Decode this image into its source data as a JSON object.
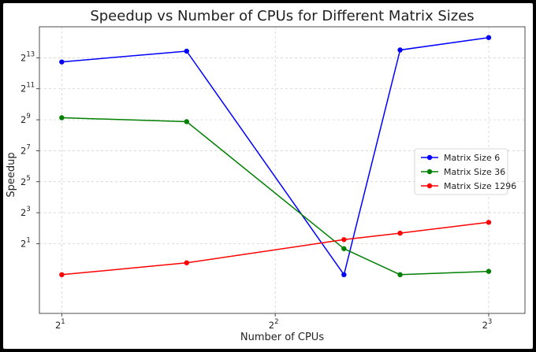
{
  "chart_data": {
    "type": "line",
    "title": "Speedup vs Number of CPUs for Different Matrix Sizes",
    "xlabel": "Number of CPUs",
    "ylabel": "Speedup",
    "x_scale": "log2",
    "y_scale": "log2",
    "x": [
      2,
      3,
      5,
      6,
      8
    ],
    "xlim": [
      1.86,
      9.0
    ],
    "ylim": [
      0.0884,
      32768
    ],
    "x_ticks": [
      {
        "value": 2,
        "base": "2",
        "exp": "1"
      },
      {
        "value": 4,
        "base": "2",
        "exp": "2"
      },
      {
        "value": 8,
        "base": "2",
        "exp": "3"
      }
    ],
    "y_ticks": [
      {
        "value": 2,
        "base": "2",
        "exp": "1"
      },
      {
        "value": 8,
        "base": "2",
        "exp": "3"
      },
      {
        "value": 32,
        "base": "2",
        "exp": "5"
      },
      {
        "value": 128,
        "base": "2",
        "exp": "7"
      },
      {
        "value": 512,
        "base": "2",
        "exp": "9"
      },
      {
        "value": 2048,
        "base": "2",
        "exp": "11"
      },
      {
        "value": 8192,
        "base": "2",
        "exp": "13"
      }
    ],
    "grid": true,
    "legend_position": "center-right",
    "series": [
      {
        "name": "Matrix Size 6",
        "color": "#0000ff",
        "values": [
          6800,
          11000,
          0.5,
          11600,
          20200
        ]
      },
      {
        "name": "Matrix Size 36",
        "color": "#008000",
        "values": [
          560,
          470,
          1.6,
          0.5,
          0.58
        ]
      },
      {
        "name": "Matrix Size 1296",
        "color": "#ff0000",
        "values": [
          0.5,
          0.85,
          2.4,
          3.2,
          5.2
        ]
      }
    ]
  }
}
